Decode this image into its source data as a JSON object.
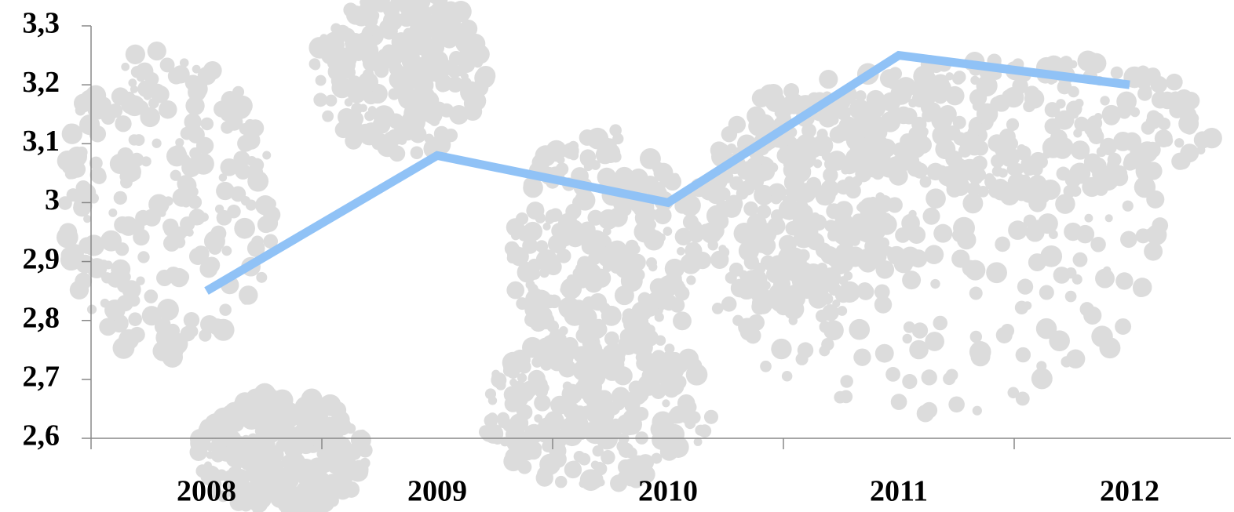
{
  "chart_data": {
    "type": "line",
    "categories": [
      "2008",
      "2009",
      "2010",
      "2011",
      "2012"
    ],
    "series": [
      {
        "color": "#90c2f6",
        "values": [
          2.85,
          3.08,
          3.0,
          3.25,
          3.2
        ]
      }
    ],
    "ylim": [
      2.6,
      3.3
    ],
    "yticks": [
      {
        "value": 2.6,
        "label": "2,6"
      },
      {
        "value": 2.7,
        "label": "2,7"
      },
      {
        "value": 2.8,
        "label": "2,8"
      },
      {
        "value": 2.9,
        "label": "2,9"
      },
      3,
      {
        "value": 3.1,
        "label": "3,1"
      },
      {
        "value": 3.2,
        "label": "3,2"
      },
      {
        "value": 3.3,
        "label": "3,3"
      }
    ],
    "grid": false
  }
}
